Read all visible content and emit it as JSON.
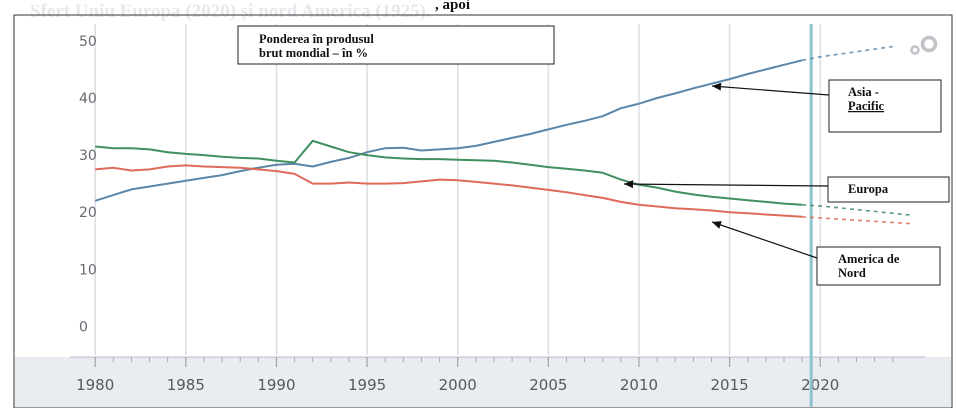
{
  "header": {
    "top_caption": ", apoi",
    "faded_heading": "Sfert Uniu Europa (2020) și nord America (1925)."
  },
  "chart_data": {
    "type": "line",
    "title": "Ponderea în produsul brut mondial – în %",
    "title_lines": [
      "Ponderea în produsul",
      "brut mondial – în %"
    ],
    "xlabel": "",
    "ylabel": "",
    "xlim": [
      1978.5,
      2026
    ],
    "ylim": [
      -5,
      54
    ],
    "yticks": [
      0,
      10,
      20,
      30,
      40,
      50
    ],
    "xticks": [
      1980,
      1985,
      1990,
      1995,
      2000,
      2005,
      2010,
      2015,
      2020
    ],
    "grid": true,
    "current_year_marker": 2019.5,
    "series": [
      {
        "name": "Asia - Pacific",
        "label_lines": [
          "Asia -",
          "Pacific"
        ],
        "color": "#5b86a8",
        "x": [
          1980,
          1981,
          1982,
          1983,
          1984,
          1985,
          1986,
          1987,
          1988,
          1989,
          1990,
          1991,
          1992,
          1993,
          1994,
          1995,
          1996,
          1997,
          1998,
          1999,
          2000,
          2001,
          2002,
          2003,
          2004,
          2005,
          2006,
          2007,
          2008,
          2009,
          2010,
          2011,
          2012,
          2013,
          2014,
          2015,
          2016,
          2017,
          2018,
          2019
        ],
        "values": [
          22,
          23,
          24,
          24.5,
          25,
          25.5,
          26,
          26.5,
          27.2,
          27.8,
          28.3,
          28.5,
          28,
          28.8,
          29.5,
          30.5,
          31.2,
          31.3,
          30.8,
          31,
          31.2,
          31.6,
          32.3,
          33,
          33.7,
          34.5,
          35.3,
          36,
          36.8,
          38.2,
          39,
          40,
          40.8,
          41.7,
          42.5,
          43.3,
          44.2,
          45,
          45.8,
          46.6
        ],
        "projection_x": [
          2020,
          2024
        ],
        "projection_values": [
          47.2,
          49
        ]
      },
      {
        "name": "Europa",
        "label_lines": [
          "Europa"
        ],
        "color": "#3f8f5f",
        "x": [
          1980,
          1981,
          1982,
          1983,
          1984,
          1985,
          1986,
          1987,
          1988,
          1989,
          1990,
          1991,
          1992,
          1993,
          1994,
          1995,
          1996,
          1997,
          1998,
          1999,
          2000,
          2001,
          2002,
          2003,
          2004,
          2005,
          2006,
          2007,
          2008,
          2009,
          2010,
          2011,
          2012,
          2013,
          2014,
          2015,
          2016,
          2017,
          2018,
          2019
        ],
        "values": [
          31.5,
          31.2,
          31.2,
          31,
          30.5,
          30.2,
          30,
          29.7,
          29.5,
          29.4,
          29,
          28.7,
          32.5,
          31.5,
          30.5,
          30,
          29.6,
          29.4,
          29.3,
          29.3,
          29.2,
          29.1,
          29,
          28.7,
          28.3,
          27.9,
          27.6,
          27.3,
          26.9,
          25.7,
          24.8,
          24.3,
          23.6,
          23.1,
          22.7,
          22.4,
          22.1,
          21.8,
          21.5,
          21.3
        ],
        "projection_x": [
          2020,
          2025
        ],
        "projection_values": [
          21.1,
          19.5
        ]
      },
      {
        "name": "America de Nord",
        "label_lines": [
          "America de",
          "Nord"
        ],
        "color": "#e06a5a",
        "x": [
          1980,
          1981,
          1982,
          1983,
          1984,
          1985,
          1986,
          1987,
          1988,
          1989,
          1990,
          1991,
          1992,
          1993,
          1994,
          1995,
          1996,
          1997,
          1998,
          1999,
          2000,
          2001,
          2002,
          2003,
          2004,
          2005,
          2006,
          2007,
          2008,
          2009,
          2010,
          2011,
          2012,
          2013,
          2014,
          2015,
          2016,
          2017,
          2018,
          2019
        ],
        "values": [
          27.5,
          27.8,
          27.3,
          27.5,
          28,
          28.2,
          28,
          27.9,
          27.8,
          27.5,
          27.2,
          26.7,
          25,
          25,
          25.2,
          25,
          25,
          25.1,
          25.4,
          25.7,
          25.6,
          25.3,
          25,
          24.7,
          24.3,
          23.9,
          23.5,
          23,
          22.5,
          21.8,
          21.3,
          21,
          20.7,
          20.5,
          20.3,
          20,
          19.8,
          19.6,
          19.4,
          19.2
        ],
        "projection_x": [
          2020,
          2025
        ],
        "projection_values": [
          19,
          18
        ]
      }
    ]
  }
}
